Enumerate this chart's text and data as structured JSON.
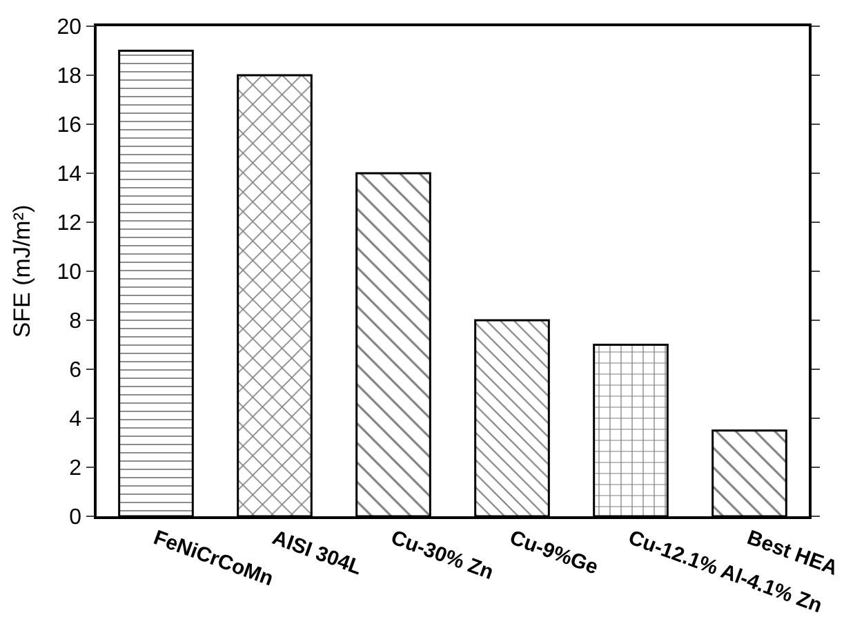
{
  "chart_data": {
    "type": "bar",
    "ylabel": "SFE (mJ/m²)",
    "categories": [
      "FeNiCrCoMn",
      "AISI 304L",
      "Cu-30% Zn",
      "Cu-9%Ge",
      "Cu-12.1% Al-4.1% Zn",
      "Best HEA"
    ],
    "values": [
      19,
      18,
      14,
      8,
      7,
      3.5
    ],
    "color": "#000000",
    "ylim": [
      0,
      20
    ],
    "yticks": [
      0,
      2,
      4,
      6,
      8,
      10,
      12,
      14,
      16,
      18,
      20
    ]
  }
}
